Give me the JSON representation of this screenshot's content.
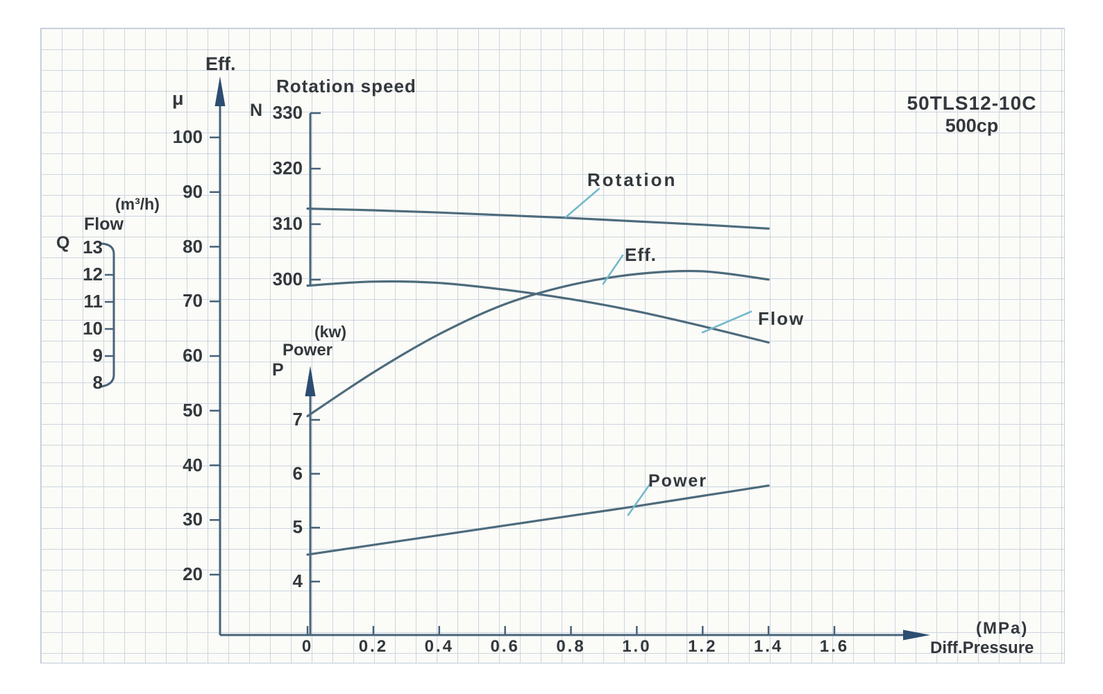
{
  "header": {
    "model": "50TLS12-10C",
    "spec": "500cp"
  },
  "colors": {
    "curve": "#4d6b7c",
    "axis": "#47637a",
    "arrow": "#2c4d70",
    "leader": "#74b9cc",
    "text": "#33383c",
    "grid": "#ccd5df",
    "paper": "#fbfbf8"
  },
  "axes": {
    "x": {
      "name": "Diff.Pressure",
      "unit": "(MPa)",
      "ticks": [
        "0",
        "0.2",
        "0.4",
        "0.6",
        "0.8",
        "1.0",
        "1.2",
        "1.4",
        "1.6"
      ]
    },
    "eff": {
      "name": "Eff.",
      "symbol": "μ",
      "ticks": [
        "100",
        "90",
        "80",
        "70",
        "60",
        "50",
        "40",
        "30",
        "20"
      ]
    },
    "flow": {
      "name": "Flow",
      "symbol": "Q",
      "unit": "(m³/h)",
      "ticks": [
        "13",
        "12",
        "11",
        "10",
        "9",
        "8"
      ]
    },
    "rotation": {
      "title": "Rotation speed",
      "symbol": "N",
      "ticks": [
        "330",
        "320",
        "310",
        "300"
      ]
    },
    "power": {
      "name": "Power",
      "symbol": "P",
      "unit": "(kw)",
      "ticks": [
        "7",
        "6",
        "5",
        "4"
      ]
    }
  },
  "curve_labels": {
    "rotation": "Rotation",
    "eff": "Eff.",
    "flow": "Flow",
    "power": "Power"
  },
  "chart_data": {
    "type": "line",
    "title": "50TLS12-10C",
    "subtitle": "500cp",
    "xlabel": "Diff.Pressure (MPa)",
    "x_range": [
      0,
      1.6
    ],
    "grid": true,
    "x": [
      0,
      0.2,
      0.4,
      0.6,
      0.8,
      1.0,
      1.2,
      1.4
    ],
    "series": [
      {
        "name": "Rotation",
        "axis": "rotation",
        "values": [
          312.8,
          312.5,
          312.1,
          311.6,
          311.1,
          310.5,
          309.9,
          309.2
        ]
      },
      {
        "name": "Eff.",
        "axis": "eff",
        "values": [
          49,
          57,
          64,
          69.5,
          73,
          75,
          75.5,
          74
        ]
      },
      {
        "name": "Flow",
        "axis": "flow",
        "values": [
          11.6,
          11.75,
          11.7,
          11.45,
          11.1,
          10.65,
          10.1,
          9.5
        ]
      },
      {
        "name": "Power",
        "axis": "power",
        "values": [
          4.5,
          4.68,
          4.86,
          5.04,
          5.22,
          5.4,
          5.59,
          5.78
        ]
      }
    ],
    "y_axes": {
      "eff": {
        "label": "Eff. μ",
        "range": [
          20,
          100
        ],
        "ticks": [
          100,
          90,
          80,
          70,
          60,
          50,
          40,
          30,
          20
        ]
      },
      "flow": {
        "label": "Flow Q (m³/h)",
        "range": [
          8,
          13
        ],
        "ticks": [
          13,
          12,
          11,
          10,
          9,
          8
        ]
      },
      "rotation": {
        "label": "Rotation speed N",
        "range": [
          300,
          330
        ],
        "ticks": [
          330,
          320,
          310,
          300
        ]
      },
      "power": {
        "label": "Power P (kw)",
        "range": [
          4,
          7
        ],
        "ticks": [
          7,
          6,
          5,
          4
        ]
      }
    }
  }
}
